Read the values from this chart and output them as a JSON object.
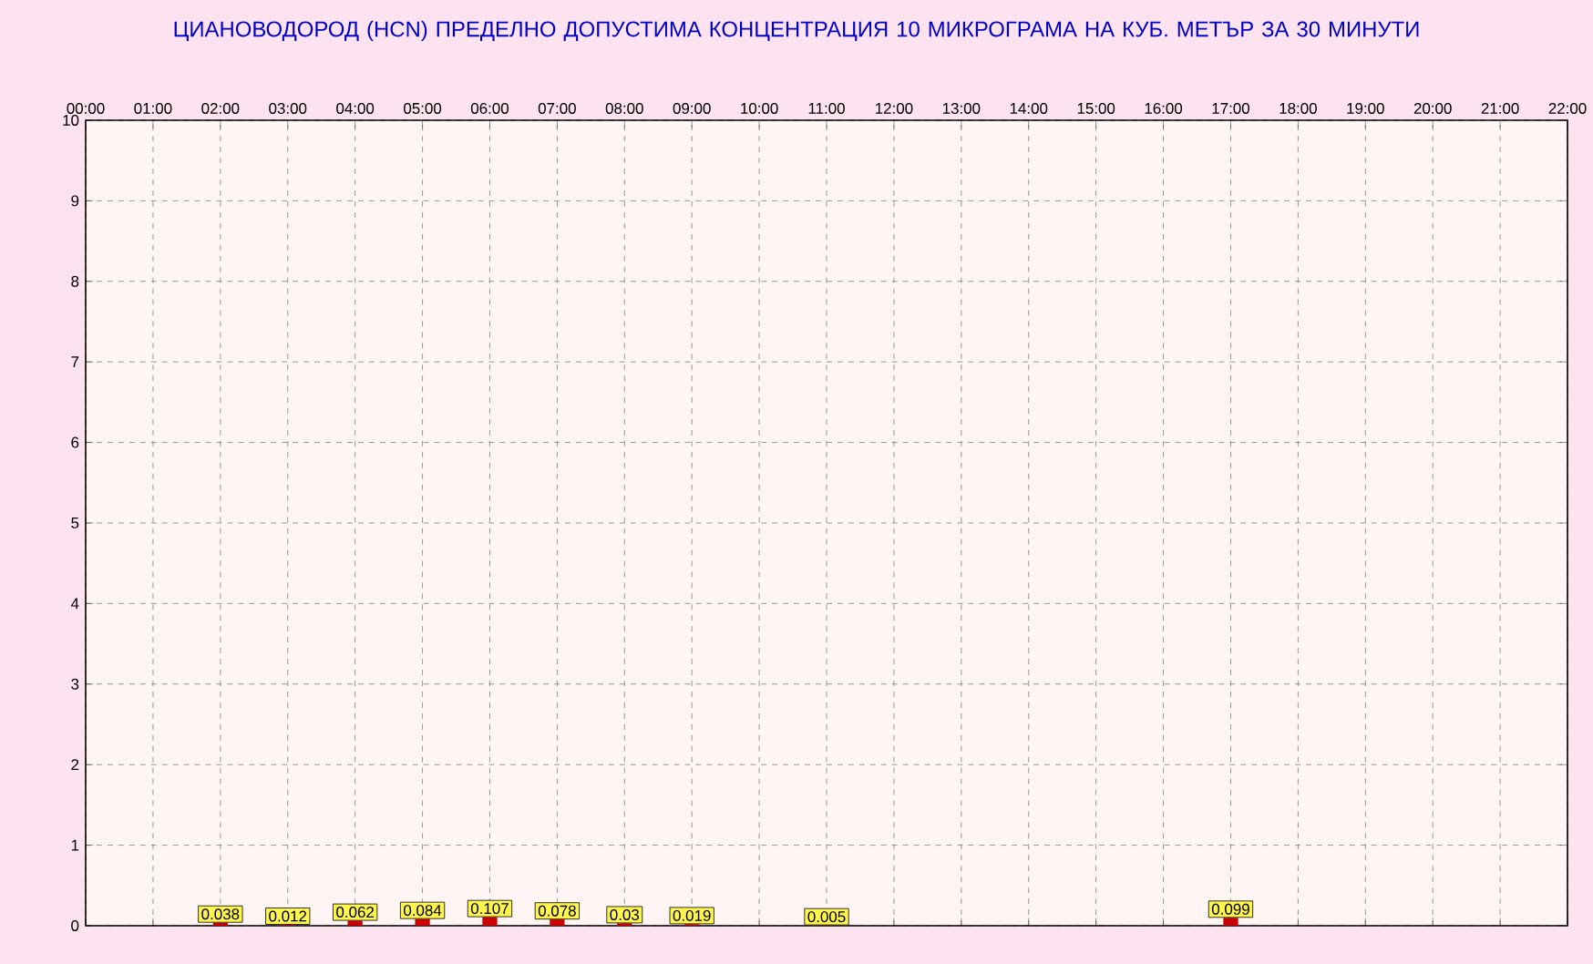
{
  "chart_data": {
    "type": "bar",
    "title": "ЦИАНОВОДОРОД      (HCN)    ПРЕДЕЛНО ДОПУСТИМА КОНЦЕНТРАЦИЯ 10 МИКРОГРАМА  НА КУБ. МЕТЪР ЗА 30 МИНУТИ",
    "x": [
      2,
      3,
      4,
      5,
      6,
      7,
      8,
      9,
      11,
      17
    ],
    "values": [
      0.038,
      0.012,
      0.062,
      0.084,
      0.107,
      0.078,
      0.03,
      0.019,
      0.005,
      0.099
    ],
    "value_labels": [
      "0.038",
      "0.012",
      "0.062",
      "0.084",
      "0.107",
      "0.078",
      "0.03",
      "0.019",
      "0.005",
      "0.099"
    ],
    "color": "#cc0000",
    "xlim": [
      0,
      22
    ],
    "xticks": [
      {
        "value": 0,
        "label": "00:00"
      },
      {
        "value": 1,
        "label": "01:00"
      },
      {
        "value": 2,
        "label": "02:00"
      },
      {
        "value": 3,
        "label": "03:00"
      },
      {
        "value": 4,
        "label": "04:00"
      },
      {
        "value": 5,
        "label": "05:00"
      },
      {
        "value": 6,
        "label": "06:00"
      },
      {
        "value": 7,
        "label": "07:00"
      },
      {
        "value": 8,
        "label": "08:00"
      },
      {
        "value": 9,
        "label": "09:00"
      },
      {
        "value": 10,
        "label": "10:00"
      },
      {
        "value": 11,
        "label": "11:00"
      },
      {
        "value": 12,
        "label": "12:00"
      },
      {
        "value": 13,
        "label": "13:00"
      },
      {
        "value": 14,
        "label": "14:00"
      },
      {
        "value": 15,
        "label": "15:00"
      },
      {
        "value": 16,
        "label": "16:00"
      },
      {
        "value": 17,
        "label": "17:00"
      },
      {
        "value": 18,
        "label": "18:00"
      },
      {
        "value": 19,
        "label": "19:00"
      },
      {
        "value": 20,
        "label": "20:00"
      },
      {
        "value": 21,
        "label": "21:00"
      },
      {
        "value": 22,
        "label": "22:00"
      }
    ],
    "ylim": [
      0,
      10
    ],
    "yticks": [
      0,
      1,
      2,
      3,
      4,
      5,
      6,
      7,
      8,
      9,
      10
    ],
    "grid": true
  }
}
